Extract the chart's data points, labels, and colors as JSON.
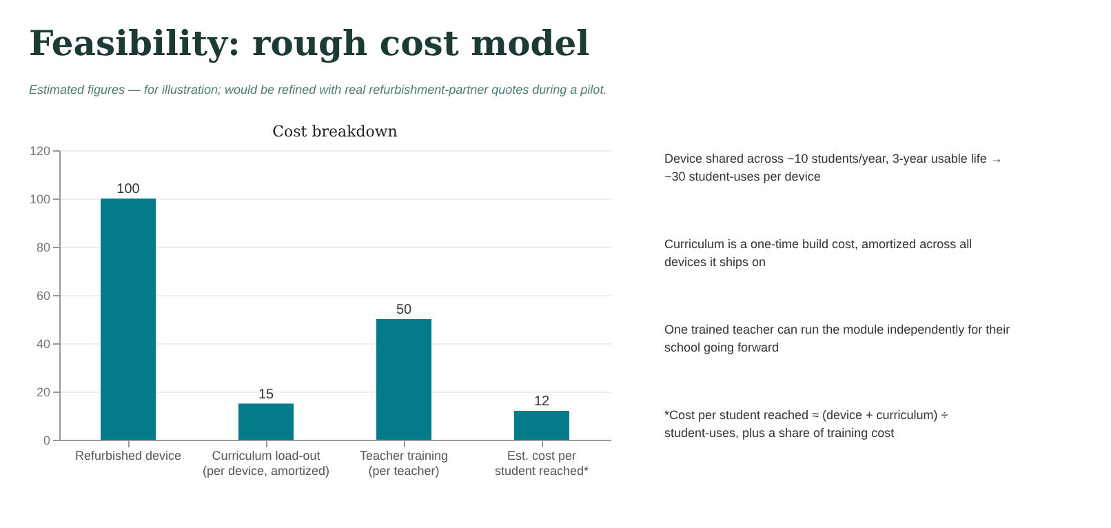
{
  "chart_data": {
    "type": "bar",
    "title": "Feasibility: rough cost model",
    "subtitle": "Estimated figures — for illustration; would be refined with real refurbishment-partner quotes during a pilot.",
    "categories": [
      "Refurbished device",
      "Curriculum load-out\n(per device, amortized)",
      "Teacher training\n(per teacher)",
      "Est. cost per\nstudent reached*"
    ],
    "values": [
      100,
      15,
      50,
      12
    ],
    "color": "#037b8a",
    "ylim": [
      0,
      120
    ],
    "yticks": [
      0,
      20,
      40,
      60,
      80,
      100,
      120
    ],
    "grid": "y",
    "data_labels": true,
    "annotations": [
      "Cost breakdown",
      "Device shared across ~10 students/year, 3-year usable life → ~30 student-uses per device",
      "Curriculum is a one-time build cost, amortized across all devices it ships on",
      "One trained teacher can run the module independently for their school going forward",
      "*Cost per student reached ≈ (device + curriculum) ÷ student-uses, plus a share of training cost"
    ]
  }
}
